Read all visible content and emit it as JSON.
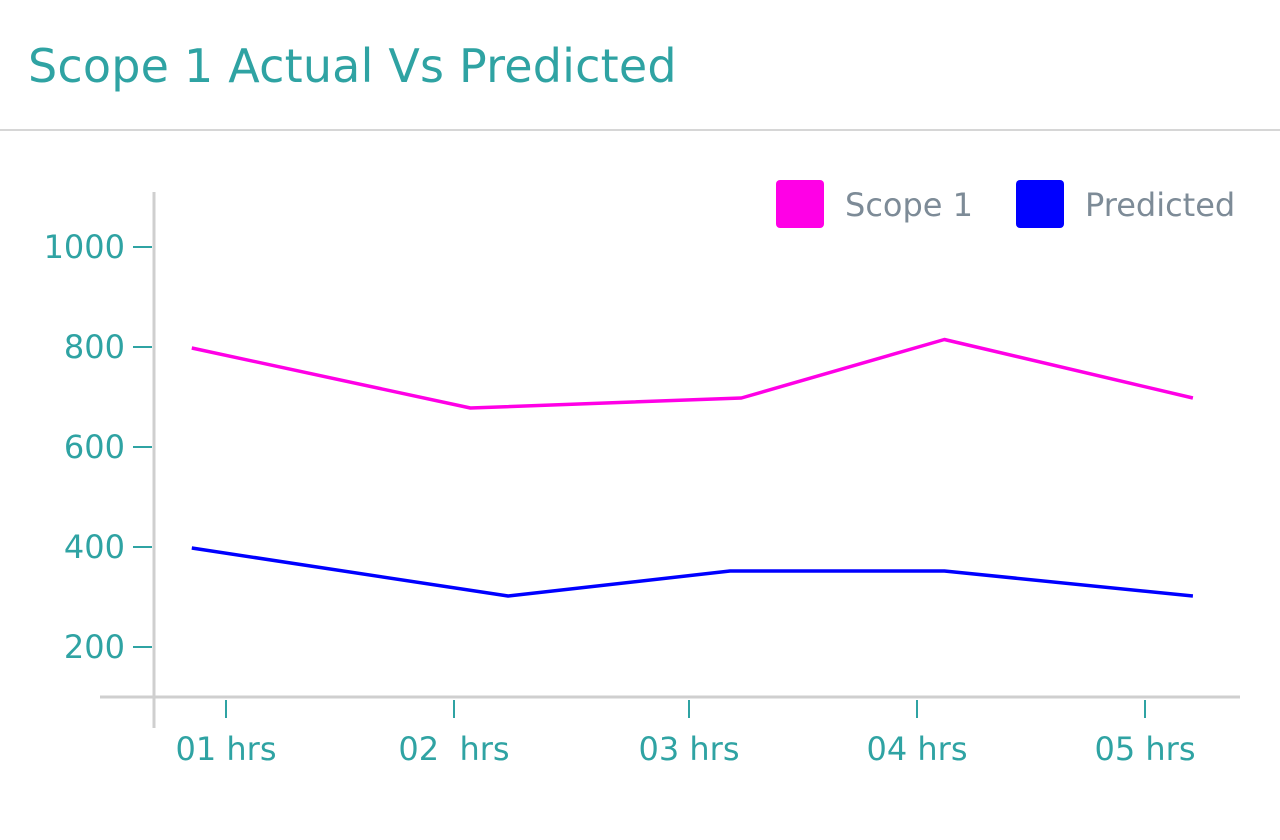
{
  "header": {
    "title": "Scope 1 Actual Vs Predicted"
  },
  "chart_data": {
    "type": "line",
    "title": "Scope 1 Actual Vs Predicted",
    "xlabel": "",
    "ylabel": "",
    "categories": [
      "01 hrs",
      "02  hrs",
      "03 hrs",
      "04 hrs",
      "05 hrs"
    ],
    "ylim": [
      100,
      1100
    ],
    "yticks": [
      200,
      400,
      600,
      800,
      1000
    ],
    "grid": false,
    "legend_position": "top-right",
    "series": [
      {
        "name": "Scope 1",
        "color": "#ff00e6",
        "x": [
          0.85,
          2.07,
          3.23,
          4.12,
          5.21
        ],
        "values": [
          798,
          678,
          698,
          815,
          698
        ]
      },
      {
        "name": "Predicted",
        "color": "#0000ff",
        "x": [
          0.85,
          2.23,
          3.18,
          4.12,
          5.21
        ],
        "values": [
          398,
          302,
          352,
          352,
          302
        ]
      }
    ]
  }
}
